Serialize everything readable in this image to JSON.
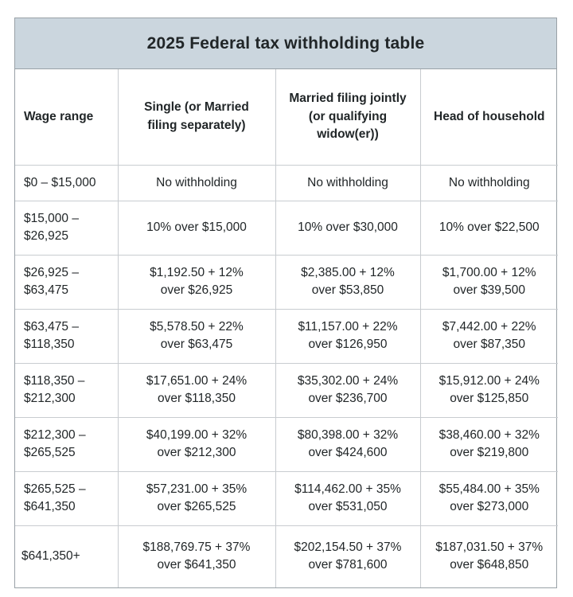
{
  "title": "2025 Federal tax withholding table",
  "colors": {
    "title_band": "#cbd6de",
    "outer_border": "#99a1a7",
    "grid_line": "#c8ccd0",
    "text": "#212628",
    "background": "#ffffff"
  },
  "chart_data": {
    "type": "table",
    "title": "2025 Federal tax withholding table",
    "columns": [
      "Wage range",
      "Single (or Married\nfiling separately)",
      "Married filing jointly\n(or qualifying\nwidow(er))",
      "Head of household"
    ],
    "rows": [
      [
        "$0 – $15,000",
        "No withholding",
        "No withholding",
        "No withholding"
      ],
      [
        "$15,000 –\n$26,925",
        "10% over $15,000",
        "10% over $30,000",
        "10% over $22,500"
      ],
      [
        "$26,925 –\n$63,475",
        "$1,192.50 + 12%\nover $26,925",
        "$2,385.00 + 12%\nover $53,850",
        "$1,700.00 + 12%\nover $39,500"
      ],
      [
        "$63,475 –\n$118,350",
        "$5,578.50 + 22%\nover $63,475",
        "$11,157.00 + 22%\nover $126,950",
        "$7,442.00 + 22%\nover $87,350"
      ],
      [
        "$118,350 –\n$212,300",
        "$17,651.00 + 24%\nover $118,350",
        "$35,302.00 + 24%\nover $236,700",
        "$15,912.00 + 24%\nover $125,850"
      ],
      [
        "$212,300 –\n$265,525",
        "$40,199.00 + 32%\nover $212,300",
        "$80,398.00 + 32%\nover $424,600",
        "$38,460.00 + 32%\nover $219,800"
      ],
      [
        "$265,525 –\n$641,350",
        "$57,231.00 + 35%\nover $265,525",
        "$114,462.00 + 35%\nover $531,050",
        "$55,484.00 + 35%\nover $273,000"
      ],
      [
        "$641,350+",
        "$188,769.75 + 37%\nover $641,350",
        "$202,154.50 + 37%\nover $781,600",
        "$187,031.50 + 37%\nover $648,850"
      ]
    ]
  }
}
